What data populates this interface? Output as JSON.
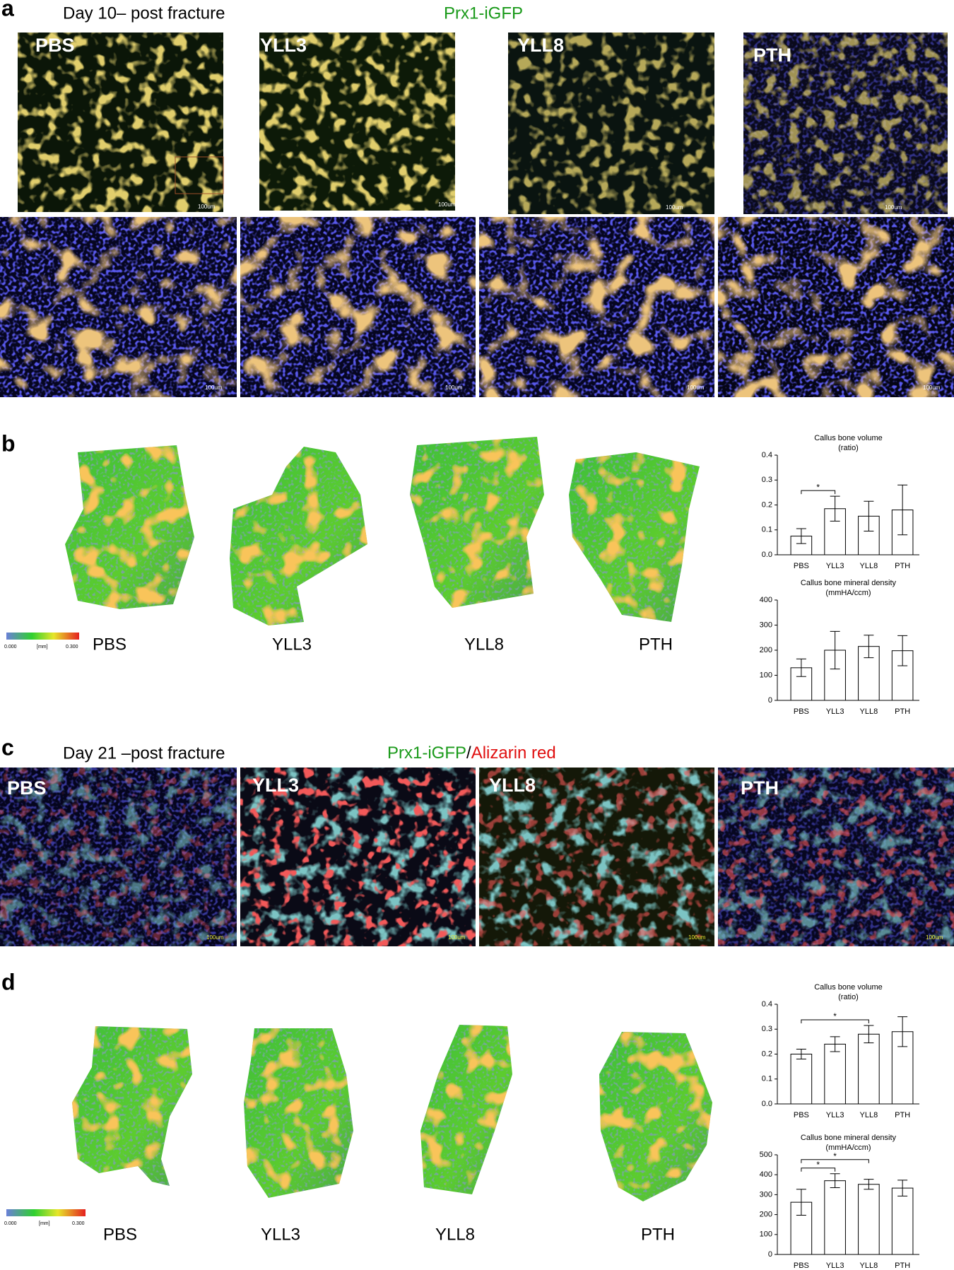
{
  "panels": {
    "a": {
      "letter": "a",
      "title": "Day 10– post fracture",
      "stain": "Prx1-iGFP",
      "groups": [
        "PBS",
        "YLL3",
        "YLL8",
        "PTH"
      ],
      "scale_bar": "100um"
    },
    "b": {
      "letter": "b",
      "groups": [
        "PBS",
        "YLL3",
        "YLL8",
        "PTH"
      ],
      "colorbar": {
        "min": "0.000",
        "unit": "[mm]",
        "max": "0.300"
      }
    },
    "c": {
      "letter": "c",
      "title": "Day 21 –post fracture",
      "stain_green": "Prx1-iGFP",
      "separator": "/",
      "stain_red": "Alizarin red",
      "groups": [
        "PBS",
        "YLL3",
        "YLL8",
        "PTH"
      ],
      "scale_bar": "100um"
    },
    "d": {
      "letter": "d",
      "groups": [
        "PBS",
        "YLL3",
        "YLL8",
        "PTH"
      ],
      "colorbar": {
        "min": "0.000",
        "unit": "[mm]",
        "max": "0.300"
      }
    }
  },
  "chart_data": [
    {
      "type": "bar",
      "title": "Callus bone volume",
      "subtitle": "(ratio)",
      "categories": [
        "PBS",
        "YLL3",
        "YLL8",
        "PTH"
      ],
      "values": [
        0.075,
        0.185,
        0.155,
        0.18
      ],
      "errors": [
        0.03,
        0.05,
        0.06,
        0.1
      ],
      "ylim": [
        0,
        0.4
      ],
      "yticks": [
        {
          "value": 0,
          "label": "0.0"
        },
        0.1,
        0.2,
        0.3,
        0.4
      ],
      "significance": [
        {
          "between": [
            "PBS",
            "YLL3"
          ],
          "label": "*"
        }
      ]
    },
    {
      "type": "bar",
      "title": "Callus bone mineral density",
      "subtitle": "(mmHA/ccm)",
      "categories": [
        "PBS",
        "YLL3",
        "YLL8",
        "PTH"
      ],
      "values": [
        130,
        200,
        215,
        198
      ],
      "errors": [
        35,
        75,
        45,
        60
      ],
      "ylim": [
        0,
        400
      ],
      "yticks": [
        0,
        100,
        200,
        300,
        400
      ],
      "significance": []
    },
    {
      "type": "bar",
      "title": "Callus bone volume",
      "subtitle": "(ratio)",
      "categories": [
        "PBS",
        "YLL3",
        "YLL8",
        "PTH"
      ],
      "values": [
        0.2,
        0.24,
        0.28,
        0.29
      ],
      "errors": [
        0.02,
        0.03,
        0.035,
        0.06
      ],
      "ylim": [
        0,
        0.4
      ],
      "yticks": [
        {
          "value": 0,
          "label": "0.0"
        },
        0.1,
        0.2,
        0.3,
        0.4
      ],
      "significance": [
        {
          "between": [
            "PBS",
            "YLL8"
          ],
          "label": "*"
        }
      ]
    },
    {
      "type": "bar",
      "title": "Callus bone mineral density",
      "subtitle": "(mmHA/ccm)",
      "categories": [
        "PBS",
        "YLL3",
        "YLL8",
        "PTH"
      ],
      "values": [
        262,
        370,
        352,
        333
      ],
      "errors": [
        65,
        35,
        25,
        40
      ],
      "ylim": [
        0,
        500
      ],
      "yticks": [
        0,
        100,
        200,
        300,
        400,
        500
      ],
      "significance": [
        {
          "between": [
            "PBS",
            "YLL3"
          ],
          "label": "*"
        },
        {
          "between": [
            "PBS",
            "YLL8"
          ],
          "label": "*"
        }
      ]
    }
  ]
}
